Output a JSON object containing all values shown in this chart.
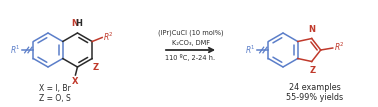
{
  "bg_color": "#ffffff",
  "blue_color": "#5B7EC9",
  "red_color": "#C0392B",
  "black_color": "#2a2a2a",
  "reagent_line1": "(IPr)CuCl (10 mol%)",
  "reagent_line2": "K₂CO₃, DMF",
  "reagent_line3": "110 ºC, 2-24 h.",
  "label_examples": "24 examples",
  "label_yields": "55-99% yields",
  "figsize": [
    3.78,
    1.07
  ],
  "dpi": 100
}
